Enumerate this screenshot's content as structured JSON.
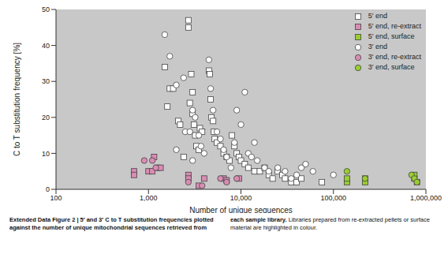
{
  "chart_data": {
    "type": "scatter",
    "x_label": "Number of unique sequences",
    "y_label": "C to T substitution frequency [%]",
    "log": "x",
    "grid": false,
    "legend": "top-right",
    "xlim": [
      100,
      1000000
    ],
    "xticks": [
      {
        "value": 100,
        "label": "100"
      },
      {
        "value": 1000,
        "label": "1,000"
      },
      {
        "value": 10000,
        "label": "10,000"
      },
      {
        "value": 100000,
        "label": "100,000"
      },
      {
        "value": 1000000,
        "label": "1,000,000"
      }
    ],
    "ylim": [
      0,
      50
    ],
    "yticks": [
      0,
      10,
      20,
      30,
      40,
      50
    ],
    "series": [
      {
        "name": "5′ end",
        "marker": "square",
        "color": "#ffffff",
        "x": [
          1500,
          1600,
          1700,
          1850,
          2100,
          2200,
          2700,
          2700,
          2900,
          3000,
          2800,
          3000,
          3100,
          3200,
          3300,
          3500,
          3600,
          3800,
          4500,
          4600,
          4700,
          4800,
          5000,
          5100,
          5200,
          5500,
          6000,
          6500,
          7000,
          7500,
          8000,
          8500,
          9000,
          9500,
          10000,
          11000,
          12000,
          14000,
          16000,
          18000,
          20000,
          22000,
          25000,
          28000,
          30000,
          35000,
          40000,
          45000,
          75000,
          2400
        ],
        "values": [
          34,
          23,
          28,
          28,
          19,
          18,
          47,
          45,
          32,
          27,
          24,
          21,
          18,
          15,
          12,
          11,
          17,
          16,
          33,
          32,
          25,
          20,
          19,
          16,
          14,
          13,
          12,
          10,
          9,
          8,
          15,
          12,
          10,
          9,
          8,
          7,
          6,
          5,
          5,
          6,
          4,
          3,
          5,
          4,
          3,
          2,
          2,
          3,
          2,
          9
        ]
      },
      {
        "name": "5′ end, re-extract",
        "marker": "square",
        "color": "#d98cb3",
        "x": [
          700,
          700,
          1000,
          1100,
          1150,
          1250,
          1350,
          2700,
          2700,
          3500,
          4000,
          6500,
          7000,
          9500
        ],
        "values": [
          5,
          4,
          5,
          5,
          9,
          6,
          6,
          4,
          3,
          1,
          3,
          3,
          2.5,
          3
        ]
      },
      {
        "name": "5′ end, surface",
        "marker": "square",
        "color": "#9acd32",
        "x": [
          140000,
          140000,
          220000,
          220000,
          750000,
          800000,
          750000
        ],
        "values": [
          2,
          3,
          3,
          2,
          3,
          2,
          4
        ]
      },
      {
        "name": "3′ end",
        "marker": "circle",
        "color": "#ffffff",
        "x": [
          1500,
          1700,
          2000,
          2400,
          2500,
          2800,
          3000,
          3200,
          3500,
          3700,
          4000,
          4500,
          4700,
          5000,
          5500,
          6000,
          6500,
          7000,
          7800,
          8500,
          9000,
          10000,
          11000,
          12000,
          13000,
          14000,
          15000,
          18000,
          20000,
          25000,
          30000,
          35000,
          40000,
          45000,
          50000,
          60000,
          100000,
          2000,
          3000
        ],
        "values": [
          43,
          37,
          29,
          31,
          16,
          16,
          22,
          20,
          15,
          12,
          10,
          36,
          28,
          22,
          16,
          14,
          11,
          9,
          6,
          13,
          22,
          18,
          27,
          10,
          9,
          13,
          8,
          6,
          5,
          6,
          5,
          3,
          4,
          6,
          7,
          5,
          4,
          11,
          8
        ]
      },
      {
        "name": "3′ end, re-extract",
        "marker": "circle",
        "color": "#d98cb3",
        "x": [
          900,
          1100,
          1200,
          2700,
          6000,
          7000,
          9000,
          3800
        ],
        "values": [
          8,
          8,
          6,
          2,
          3,
          2,
          3,
          1
        ]
      },
      {
        "name": "3′ end, surface",
        "marker": "circle",
        "color": "#9acd32",
        "x": [
          140000,
          220000,
          700000,
          750000,
          800000
        ],
        "values": [
          5,
          3,
          4,
          3,
          2
        ]
      }
    ]
  },
  "caption": {
    "title": "Extended Data Figure 2 | 5′ and 3′ C to T substitution frequencies plotted against the number of unique mitochondrial sequences retrieved from each sample library.",
    "text": "Libraries prepared from re-extracted pellets or surface material are highlighted in colour."
  }
}
